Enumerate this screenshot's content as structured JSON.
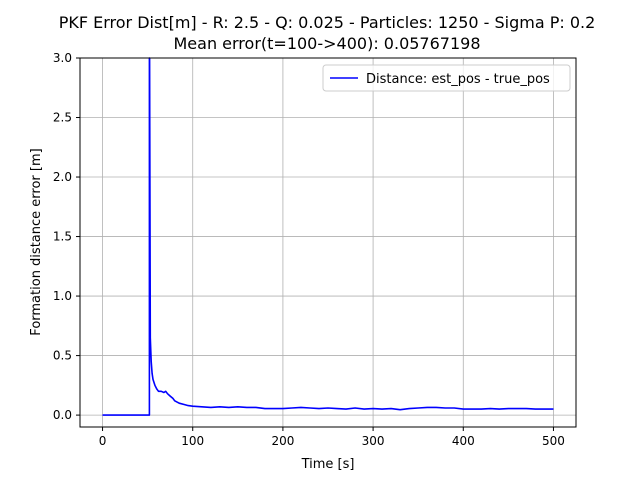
{
  "chart_data": {
    "type": "line",
    "title": "PKF Error Dist[m] - R: 2.5 - Q: 0.025 - Particles: 1250 - Sigma P: 0.2",
    "subtitle": "Mean error(t=100->400): 0.05767198",
    "xlabel": "Time [s]",
    "ylabel": "Formation distance error [m]",
    "xlim": [
      -25,
      525
    ],
    "ylim": [
      -0.1,
      3.0
    ],
    "xticks": [
      "0",
      "100",
      "200",
      "300",
      "400",
      "500"
    ],
    "yticks": [
      "0.0",
      "0.5",
      "1.0",
      "1.5",
      "2.0",
      "2.5",
      "3.0"
    ],
    "grid": true,
    "legend": "top-right",
    "series": [
      {
        "name": "Distance: est_pos - true_pos",
        "color": "#0000ff",
        "x": [
          0,
          52,
          52,
          52.2,
          53,
          54,
          55,
          56,
          58,
          60,
          62,
          65,
          68,
          70,
          72,
          75,
          78,
          80,
          85,
          90,
          95,
          100,
          110,
          120,
          130,
          140,
          150,
          160,
          170,
          180,
          190,
          200,
          210,
          220,
          230,
          240,
          250,
          260,
          270,
          280,
          290,
          300,
          310,
          320,
          330,
          340,
          350,
          360,
          370,
          380,
          390,
          400,
          410,
          420,
          430,
          440,
          450,
          460,
          470,
          480,
          490,
          500
        ],
        "y": [
          0.0,
          0.0,
          3.0,
          3.0,
          0.65,
          0.45,
          0.35,
          0.3,
          0.25,
          0.22,
          0.2,
          0.2,
          0.19,
          0.2,
          0.18,
          0.16,
          0.14,
          0.12,
          0.1,
          0.09,
          0.08,
          0.075,
          0.07,
          0.065,
          0.07,
          0.065,
          0.07,
          0.065,
          0.065,
          0.055,
          0.055,
          0.055,
          0.06,
          0.065,
          0.06,
          0.055,
          0.06,
          0.055,
          0.05,
          0.06,
          0.05,
          0.055,
          0.05,
          0.055,
          0.045,
          0.055,
          0.06,
          0.065,
          0.065,
          0.06,
          0.06,
          0.05,
          0.05,
          0.05,
          0.055,
          0.05,
          0.055,
          0.055,
          0.055,
          0.05,
          0.05,
          0.05
        ]
      }
    ]
  }
}
